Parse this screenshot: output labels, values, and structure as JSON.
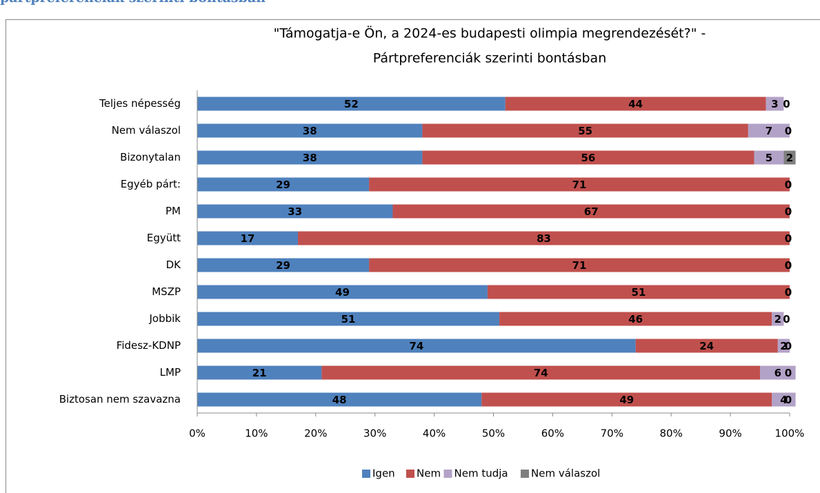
{
  "heading": "pártpreferenciák szerinti bontásban",
  "chart_data": {
    "type": "stacked_barh",
    "title": [
      "\"Támogatja-e Ön, a 2024-es budapesti olimpia megrendezését?\" -",
      "Pártpreferenciák szerinti bontásban"
    ],
    "categories": [
      "Teljes népesség",
      "Nem válaszol",
      "Bizonytalan",
      "Egyéb párt:",
      "PM",
      "Együtt",
      "DK",
      "MSZP",
      "Jobbik",
      "Fidesz-KDNP",
      "LMP",
      "Biztosan  nem szavazna"
    ],
    "series": [
      {
        "name": "Igen",
        "color": "#4f81bd",
        "values": [
          52,
          38,
          38,
          29,
          33,
          17,
          29,
          49,
          51,
          74,
          21,
          48
        ]
      },
      {
        "name": "Nem",
        "color": "#c0504d",
        "values": [
          44,
          55,
          56,
          71,
          67,
          83,
          71,
          51,
          46,
          24,
          74,
          49
        ]
      },
      {
        "name": "Nem tudja",
        "color": "#b3a2c7",
        "values": [
          3,
          7,
          5,
          0,
          0,
          0,
          0,
          0,
          2,
          2,
          6,
          4
        ]
      },
      {
        "name": "Nem válaszol",
        "color": "#7f7f7f",
        "values": [
          0,
          0,
          2,
          0,
          0,
          0,
          0,
          0,
          0,
          0,
          0,
          0
        ]
      }
    ],
    "xlim": [
      0,
      100
    ],
    "xticks": [
      {
        "value": 0,
        "label": "0%"
      },
      {
        "value": 10,
        "label": "10%"
      },
      {
        "value": 20,
        "label": "20%"
      },
      {
        "value": 30,
        "label": "30%"
      },
      {
        "value": 40,
        "label": "40%"
      },
      {
        "value": 50,
        "label": "50%"
      },
      {
        "value": 60,
        "label": "60%"
      },
      {
        "value": 70,
        "label": "70%"
      },
      {
        "value": 80,
        "label": "80%"
      },
      {
        "value": 90,
        "label": "90%"
      },
      {
        "value": 100,
        "label": "100%"
      }
    ],
    "legend": "bottom"
  }
}
